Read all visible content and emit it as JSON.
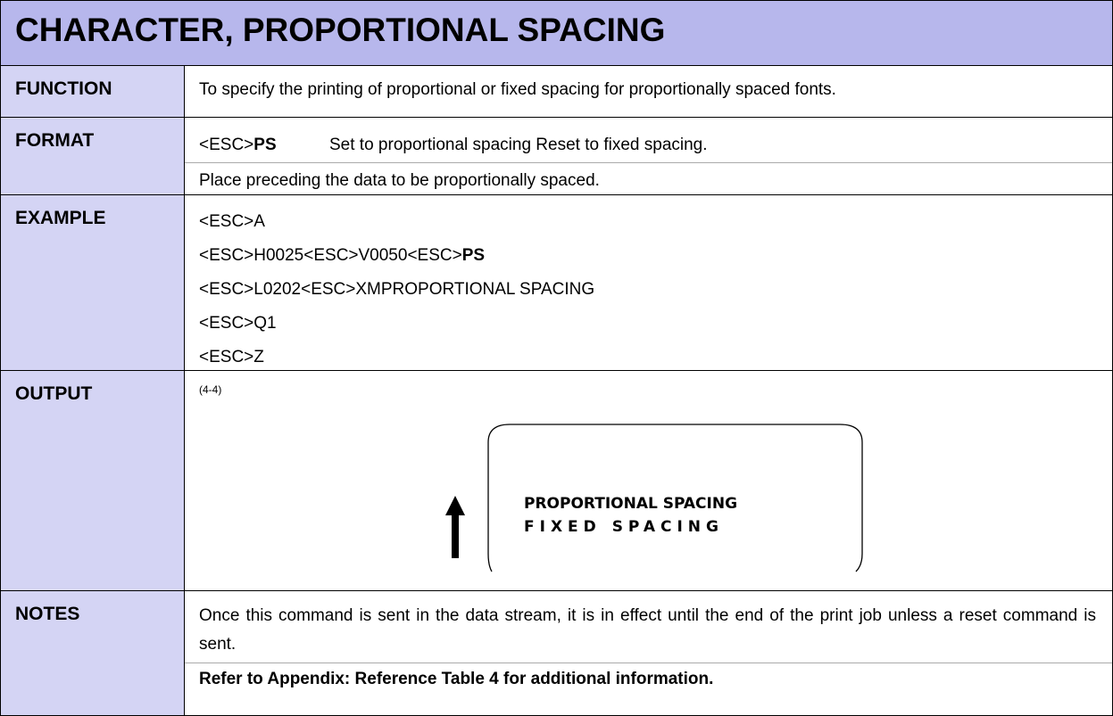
{
  "header": {
    "title": "CHARACTER, PROPORTIONAL SPACING"
  },
  "rows": {
    "function": {
      "label": "FUNCTION",
      "text": "To specify the printing of proportional or fixed spacing for proportionally spaced fonts."
    },
    "format": {
      "label": "FORMAT",
      "code": "<ESC>",
      "command": "PS",
      "description": "Set to proportional spacing Reset to fixed spacing.",
      "note": "Place preceding the data to be proportionally spaced."
    },
    "example": {
      "label": "EXAMPLE",
      "lines": [
        "<ESC>A",
        "<ESC>H0025<ESC>V0050<ESC>",
        "<ESC>L0202<ESC>XMPROPORTIONAL SPACING",
        "<ESC>Q1",
        "<ESC>Z"
      ],
      "bold": "PS"
    },
    "output": {
      "label": "OUTPUT",
      "caption": "(4-4)",
      "sample_lines": [
        "PROPORTIONAL SPACING",
        "FIXED SPACING"
      ]
    },
    "notes": {
      "label": "NOTES",
      "text": "Once this command is sent in the data stream, it is in effect until the end of the print job unless a reset command is sent.",
      "reference": "Refer to Appendix: Reference Table 4 for additional information."
    }
  }
}
